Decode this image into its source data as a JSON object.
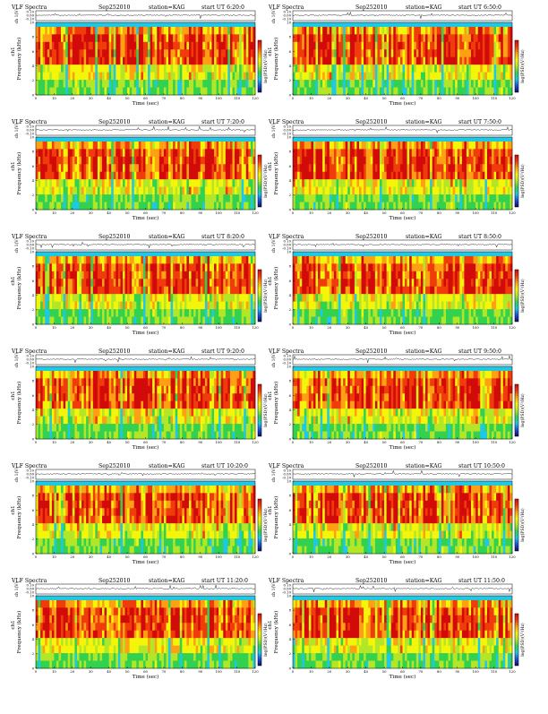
{
  "figure": {
    "panel_title": "VLF Spectra",
    "date": "Sep252010",
    "station": "station=KAG",
    "start_prefix": "start UT",
    "ch_label": "ch 1(V)",
    "ch_label_spectrogram": "ch1",
    "freq_label": "Frequency (kHz)",
    "time_label": "Time (sec)",
    "colorbar_label": "log(PSD)(V²/Hz)",
    "ch_ticks": [
      "0.10",
      "0.00",
      "-0.10"
    ],
    "freq_ticks": [
      "0",
      "2",
      "4",
      "6",
      "8",
      "10"
    ],
    "time_ticks": [
      "0",
      "10",
      "20",
      "30",
      "40",
      "50",
      "60",
      "70",
      "80",
      "90",
      "100",
      "110",
      "120"
    ]
  },
  "colors": {
    "background": "#ffffff",
    "colormap": [
      "#0a0a6e",
      "#1e50d2",
      "#1ec8e6",
      "#32d250",
      "#b4e628",
      "#f5f50a",
      "#ffa014",
      "#f03c0a",
      "#d20a0a"
    ]
  },
  "chart_data": [
    {
      "type": "heatmap",
      "title": "VLF Spectra",
      "start_time": "6:20:0",
      "xlim": [
        0,
        120
      ],
      "ylim": [
        0,
        10
      ],
      "xlabel": "Time (sec)",
      "ylabel": "Frequency (kHz)"
    },
    {
      "type": "heatmap",
      "title": "VLF Spectra",
      "start_time": "6:50:0",
      "xlim": [
        0,
        120
      ],
      "ylim": [
        0,
        10
      ],
      "xlabel": "Time (sec)",
      "ylabel": "Frequency (kHz)"
    },
    {
      "type": "heatmap",
      "title": "VLF Spectra",
      "start_time": "7:20:0",
      "xlim": [
        0,
        120
      ],
      "ylim": [
        0,
        10
      ],
      "xlabel": "Time (sec)",
      "ylabel": "Frequency (kHz)"
    },
    {
      "type": "heatmap",
      "title": "VLF Spectra",
      "start_time": "7:50:0",
      "xlim": [
        0,
        120
      ],
      "ylim": [
        0,
        10
      ],
      "xlabel": "Time (sec)",
      "ylabel": "Frequency (kHz)"
    },
    {
      "type": "heatmap",
      "title": "VLF Spectra",
      "start_time": "8:20:0",
      "xlim": [
        0,
        120
      ],
      "ylim": [
        0,
        10
      ],
      "xlabel": "Time (sec)",
      "ylabel": "Frequency (kHz)"
    },
    {
      "type": "heatmap",
      "title": "VLF Spectra",
      "start_time": "8:50:0",
      "xlim": [
        0,
        120
      ],
      "ylim": [
        0,
        10
      ],
      "xlabel": "Time (sec)",
      "ylabel": "Frequency (kHz)"
    },
    {
      "type": "heatmap",
      "title": "VLF Spectra",
      "start_time": "9:20:0",
      "xlim": [
        0,
        120
      ],
      "ylim": [
        0,
        10
      ],
      "xlabel": "Time (sec)",
      "ylabel": "Frequency (kHz)"
    },
    {
      "type": "heatmap",
      "title": "VLF Spectra",
      "start_time": "9:50:0",
      "xlim": [
        0,
        120
      ],
      "ylim": [
        0,
        10
      ],
      "xlabel": "Time (sec)",
      "ylabel": "Frequency (kHz)"
    },
    {
      "type": "heatmap",
      "title": "VLF Spectra",
      "start_time": "10:20:0",
      "xlim": [
        0,
        120
      ],
      "ylim": [
        0,
        10
      ],
      "xlabel": "Time (sec)",
      "ylabel": "Frequency (kHz)"
    },
    {
      "type": "heatmap",
      "title": "VLF Spectra",
      "start_time": "10:50:0",
      "xlim": [
        0,
        120
      ],
      "ylim": [
        0,
        10
      ],
      "xlabel": "Time (sec)",
      "ylabel": "Frequency (kHz)"
    },
    {
      "type": "heatmap",
      "title": "VLF Spectra",
      "start_time": "11:20:0",
      "xlim": [
        0,
        120
      ],
      "ylim": [
        0,
        10
      ],
      "xlabel": "Time (sec)",
      "ylabel": "Frequency (kHz)"
    },
    {
      "type": "heatmap",
      "title": "VLF Spectra",
      "start_time": "11:50:0",
      "xlim": [
        0,
        120
      ],
      "ylim": [
        0,
        10
      ],
      "xlabel": "Time (sec)",
      "ylabel": "Frequency (kHz)"
    }
  ]
}
